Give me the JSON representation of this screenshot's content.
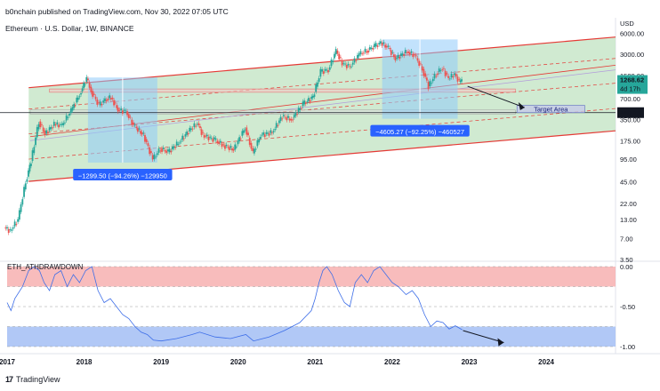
{
  "header": {
    "published": "b0nchain published on TradingView.com, Nov 30, 2022 07:05 UTC",
    "title": "Ethereum · U.S. Dollar, 1W, BINANCE"
  },
  "footer": {
    "brand": "TradingView",
    "logo": "tradingview-logo"
  },
  "colors": {
    "candle_up": "#26a69a",
    "candle_down": "#ef5350",
    "channel_fill": "#c8e6c9",
    "channel_border": "#e53935",
    "box_fill": "#90caf9",
    "drawdown_line": "#3d6ee8",
    "top_zone": "#f7b5b5",
    "bottom_zone": "#a9c2f5",
    "label_bg": "#2962ff",
    "price_tag": "#26a69a"
  },
  "chart_data": [
    {
      "type": "candlestick",
      "title": "Ethereum · U.S. Dollar, 1W, BINANCE",
      "y_scale": "log",
      "unit_axis_label": "USD",
      "ylim": [
        3.5,
        10000
      ],
      "yticks": [
        "6000.00",
        "3000.00",
        "1500.00",
        "700.00",
        "350.00",
        "175.00",
        "95.00",
        "45.00",
        "22.00",
        "13.00",
        "7.00",
        "3.50"
      ],
      "xticks": [
        "2017",
        "2018",
        "2019",
        "2020",
        "2021",
        "2022",
        "2023",
        "2024"
      ],
      "xlim": [
        2017.0,
        2024.9
      ],
      "price_path": [
        [
          2016.97,
          10
        ],
        [
          2017.05,
          9
        ],
        [
          2017.15,
          13
        ],
        [
          2017.25,
          45
        ],
        [
          2017.32,
          90
        ],
        [
          2017.42,
          330
        ],
        [
          2017.5,
          220
        ],
        [
          2017.62,
          300
        ],
        [
          2017.72,
          290
        ],
        [
          2017.84,
          470
        ],
        [
          2017.95,
          800
        ],
        [
          2018.04,
          1350
        ],
        [
          2018.1,
          900
        ],
        [
          2018.2,
          560
        ],
        [
          2018.3,
          700
        ],
        [
          2018.36,
          720
        ],
        [
          2018.45,
          480
        ],
        [
          2018.55,
          460
        ],
        [
          2018.65,
          290
        ],
        [
          2018.78,
          210
        ],
        [
          2018.9,
          95
        ],
        [
          2019.0,
          135
        ],
        [
          2019.1,
          120
        ],
        [
          2019.25,
          170
        ],
        [
          2019.38,
          250
        ],
        [
          2019.48,
          310
        ],
        [
          2019.55,
          210
        ],
        [
          2019.7,
          180
        ],
        [
          2019.82,
          150
        ],
        [
          2019.95,
          130
        ],
        [
          2020.1,
          270
        ],
        [
          2020.2,
          115
        ],
        [
          2020.3,
          210
        ],
        [
          2020.45,
          230
        ],
        [
          2020.58,
          390
        ],
        [
          2020.7,
          350
        ],
        [
          2020.85,
          580
        ],
        [
          2020.98,
          740
        ],
        [
          2021.08,
          1700
        ],
        [
          2021.18,
          1800
        ],
        [
          2021.28,
          3400
        ],
        [
          2021.36,
          2200
        ],
        [
          2021.46,
          2000
        ],
        [
          2021.58,
          3000
        ],
        [
          2021.68,
          3400
        ],
        [
          2021.78,
          3900
        ],
        [
          2021.86,
          4400
        ],
        [
          2021.96,
          3700
        ],
        [
          2022.05,
          2600
        ],
        [
          2022.2,
          3300
        ],
        [
          2022.3,
          2900
        ],
        [
          2022.4,
          1850
        ],
        [
          2022.48,
          1050
        ],
        [
          2022.58,
          1600
        ],
        [
          2022.66,
          1900
        ],
        [
          2022.74,
          1350
        ],
        [
          2022.82,
          1580
        ],
        [
          2022.88,
          1200
        ],
        [
          2022.91,
          1268
        ]
      ],
      "current_price": "1268.62",
      "countdown": "4d 17h",
      "level_price": "440.29",
      "measure_boxes": [
        {
          "start_price": 1400,
          "end_price": 85,
          "from": 2018.05,
          "to": 2018.95,
          "label": "−1299.50 (−94.26%) −129950"
        },
        {
          "start_price": 4900,
          "end_price": 360,
          "from": 2021.87,
          "to": 2022.85,
          "label": "−4605.27 (−92.25%) −460527"
        }
      ],
      "target": {
        "label": "Target Area",
        "from": 2023.62,
        "to": 2024.5,
        "low": 440,
        "high": 560
      }
    },
    {
      "type": "line",
      "title": "ETH_ATHDRAWDOWN",
      "ylim": [
        -1.0,
        0.0
      ],
      "yticks": [
        "0.00",
        "-0.50",
        "-1.00"
      ],
      "series": [
        {
          "x": [
            2017.0,
            2017.05,
            2017.1,
            2017.2,
            2017.28,
            2017.35,
            2017.42,
            2017.48,
            2017.55,
            2017.62,
            2017.7,
            2017.78,
            2017.86,
            2017.94,
            2018.02,
            2018.1,
            2018.18,
            2018.26,
            2018.34,
            2018.42,
            2018.5,
            2018.58,
            2018.66,
            2018.74,
            2018.82,
            2018.9,
            2019.0,
            2019.2,
            2019.4,
            2019.5,
            2019.7,
            2019.9,
            2020.1,
            2020.2,
            2020.4,
            2020.6,
            2020.8,
            2020.95,
            2021.0,
            2021.05,
            2021.1,
            2021.15,
            2021.22,
            2021.3,
            2021.38,
            2021.45,
            2021.52,
            2021.6,
            2021.68,
            2021.76,
            2021.84,
            2021.92,
            2022.0,
            2022.08,
            2022.18,
            2022.26,
            2022.34,
            2022.42,
            2022.5,
            2022.58,
            2022.66,
            2022.74,
            2022.82,
            2022.91
          ],
          "values": [
            -0.45,
            -0.55,
            -0.4,
            -0.25,
            -0.05,
            0.0,
            -0.05,
            -0.2,
            -0.3,
            -0.1,
            -0.05,
            -0.25,
            -0.1,
            -0.2,
            -0.05,
            0.0,
            -0.3,
            -0.45,
            -0.4,
            -0.5,
            -0.6,
            -0.65,
            -0.75,
            -0.82,
            -0.85,
            -0.92,
            -0.93,
            -0.9,
            -0.85,
            -0.82,
            -0.88,
            -0.9,
            -0.85,
            -0.93,
            -0.88,
            -0.8,
            -0.7,
            -0.55,
            -0.4,
            -0.2,
            -0.05,
            0.0,
            -0.1,
            -0.3,
            -0.45,
            -0.5,
            -0.2,
            -0.1,
            -0.2,
            -0.05,
            0.0,
            -0.1,
            -0.2,
            -0.25,
            -0.35,
            -0.3,
            -0.4,
            -0.6,
            -0.75,
            -0.68,
            -0.7,
            -0.78,
            -0.74,
            -0.79
          ]
        }
      ]
    }
  ]
}
